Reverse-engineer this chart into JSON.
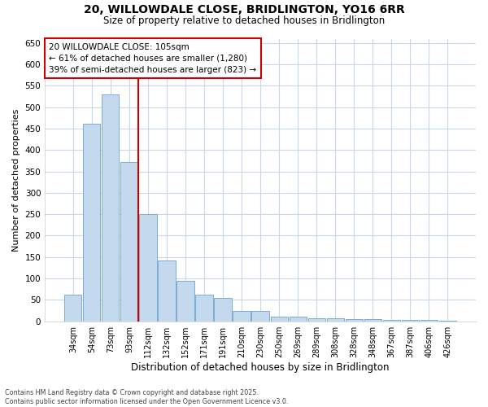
{
  "title_line1": "20, WILLOWDALE CLOSE, BRIDLINGTON, YO16 6RR",
  "title_line2": "Size of property relative to detached houses in Bridlington",
  "xlabel": "Distribution of detached houses by size in Bridlington",
  "ylabel": "Number of detached properties",
  "categories": [
    "34sqm",
    "54sqm",
    "73sqm",
    "93sqm",
    "112sqm",
    "132sqm",
    "152sqm",
    "171sqm",
    "191sqm",
    "210sqm",
    "230sqm",
    "250sqm",
    "269sqm",
    "289sqm",
    "308sqm",
    "328sqm",
    "348sqm",
    "367sqm",
    "387sqm",
    "406sqm",
    "426sqm"
  ],
  "values": [
    62,
    462,
    530,
    372,
    250,
    142,
    95,
    62,
    55,
    25,
    25,
    10,
    10,
    7,
    7,
    5,
    5,
    3,
    3,
    3,
    2
  ],
  "bar_color": "#c5d9ee",
  "bar_edge_color": "#7aaed6",
  "vline_x_index": 4,
  "vline_color": "#cc0000",
  "annotation_text": "20 WILLOWDALE CLOSE: 105sqm\n← 61% of detached houses are smaller (1,280)\n39% of semi-detached houses are larger (823) →",
  "annotation_box_color": "#cc0000",
  "ylim": [
    0,
    660
  ],
  "yticks": [
    0,
    50,
    100,
    150,
    200,
    250,
    300,
    350,
    400,
    450,
    500,
    550,
    600,
    650
  ],
  "background_color": "#ffffff",
  "grid_color": "#c8d8e8",
  "footer_line1": "Contains HM Land Registry data © Crown copyright and database right 2025.",
  "footer_line2": "Contains public sector information licensed under the Open Government Licence v3.0."
}
